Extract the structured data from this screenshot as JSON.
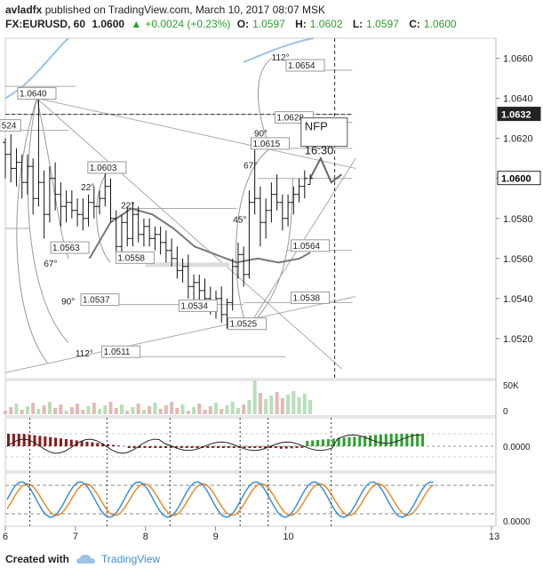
{
  "header": {
    "author": "avladfx",
    "published_text": "published on TradingView.com, March 10, 2017 08:07 MSK",
    "symbol": "FX:EURUSD, 60",
    "last": "1.0600",
    "change": "+0.0024 (+0.23%)",
    "open_label": "O:",
    "open": "1.0597",
    "high_label": "H:",
    "high": "1.0602",
    "low_label": "L:",
    "low": "1.0597",
    "close_label": "C:",
    "close": "1.0600"
  },
  "footer": {
    "created_with": "Created with",
    "brand": "TradingView"
  },
  "colors": {
    "up": "#2ba02b",
    "down": "#8b1a1a",
    "stoch_k": "#3a8fd8",
    "stoch_d": "#f08a24",
    "ma": "#777777",
    "bb": "#9cc3e6"
  },
  "chart_data": {
    "type": "candlestick",
    "y_range": [
      1.05,
      1.067
    ],
    "x_range": [
      6.0,
      13.0
    ],
    "x_ticks": [
      "6",
      "7",
      "8",
      "9",
      "10",
      "13"
    ],
    "y_ticks": [
      "1.0660",
      "1.0640",
      "1.0620",
      "1.0600",
      "1.0580",
      "1.0560",
      "1.0540",
      "1.0520"
    ],
    "price_labels": [
      {
        "text": "1.0632",
        "y": 1.0632
      },
      {
        "text": "1.0600",
        "y": 1.06
      }
    ],
    "annotations": [
      {
        "text": "1.0640",
        "x": 6.45,
        "y": 1.064
      },
      {
        "text": "1.0603",
        "x": 7.45,
        "y": 1.0603
      },
      {
        "text": "1.0558",
        "x": 7.85,
        "y": 1.0558
      },
      {
        "text": "1.0534",
        "x": 8.75,
        "y": 1.0534
      },
      {
        "text": "1.0525",
        "x": 9.45,
        "y": 1.0525
      },
      {
        "text": "1.0615",
        "x": 9.78,
        "y": 1.0615
      },
      {
        "text": "1.0654",
        "x": 10.28,
        "y": 1.0654
      },
      {
        "text": "1.0628",
        "x": 10.12,
        "y": 1.0628
      },
      {
        "text": "1.0564",
        "x": 10.35,
        "y": 1.0564
      },
      {
        "text": "1.0538",
        "x": 10.35,
        "y": 1.0538
      },
      {
        "text": "1.0563",
        "x": 6.92,
        "y": 1.0563
      },
      {
        "text": "1.0537",
        "x": 7.35,
        "y": 1.0537
      },
      {
        "text": "1.0511",
        "x": 7.65,
        "y": 1.0511
      },
      {
        "text": "524",
        "x": 6.07,
        "y": 1.0624
      },
      {
        "text": "67°",
        "x": 6.55,
        "y": 1.0556
      },
      {
        "text": "90°",
        "x": 6.8,
        "y": 1.0537
      },
      {
        "text": "112°",
        "x": 7.0,
        "y": 1.0511
      },
      {
        "text": "22°",
        "x": 7.08,
        "y": 1.0594
      },
      {
        "text": "22°",
        "x": 7.65,
        "y": 1.0585
      },
      {
        "text": "45°",
        "x": 9.25,
        "y": 1.0578
      },
      {
        "text": "67°",
        "x": 9.4,
        "y": 1.0605
      },
      {
        "text": "90°",
        "x": 9.55,
        "y": 1.0621
      },
      {
        "text": "112°",
        "x": 9.8,
        "y": 1.0659
      },
      {
        "text": "NFP",
        "x": 10.55,
        "y": 1.0624
      },
      {
        "text": "16:30",
        "x": 10.55,
        "y": 1.0612
      }
    ],
    "candles": [
      [
        1.0618,
        1.062,
        1.06,
        1.0612
      ],
      [
        1.0612,
        1.0622,
        1.0598,
        1.0605
      ],
      [
        1.0605,
        1.0615,
        1.0596,
        1.0608
      ],
      [
        1.0608,
        1.0612,
        1.059,
        1.0598
      ],
      [
        1.0598,
        1.0612,
        1.0592,
        1.0606
      ],
      [
        1.0606,
        1.061,
        1.0582,
        1.059
      ],
      [
        1.059,
        1.064,
        1.0586,
        1.0598
      ],
      [
        1.0598,
        1.0604,
        1.057,
        1.0582
      ],
      [
        1.0582,
        1.0606,
        1.0578,
        1.06
      ],
      [
        1.06,
        1.0608,
        1.0584,
        1.0592
      ],
      [
        1.0592,
        1.0598,
        1.0576,
        1.0586
      ],
      [
        1.0586,
        1.0594,
        1.0578,
        1.0588
      ],
      [
        1.0588,
        1.0594,
        1.058,
        1.0584
      ],
      [
        1.0584,
        1.059,
        1.0576,
        1.0582
      ],
      [
        1.0582,
        1.059,
        1.0574,
        1.058
      ],
      [
        1.058,
        1.0592,
        1.0576,
        1.0588
      ],
      [
        1.0588,
        1.0596,
        1.058,
        1.0586
      ],
      [
        1.0586,
        1.0594,
        1.0582,
        1.059
      ],
      [
        1.059,
        1.0603,
        1.0586,
        1.0596
      ],
      [
        1.0596,
        1.06,
        1.0578,
        1.058
      ],
      [
        1.058,
        1.0584,
        1.0558,
        1.0566
      ],
      [
        1.0566,
        1.0582,
        1.0562,
        1.0578
      ],
      [
        1.0578,
        1.0586,
        1.0566,
        1.057
      ],
      [
        1.057,
        1.0588,
        1.0566,
        1.0582
      ],
      [
        1.0582,
        1.0586,
        1.0568,
        1.0572
      ],
      [
        1.0572,
        1.058,
        1.0566,
        1.0576
      ],
      [
        1.0576,
        1.058,
        1.0566,
        1.057
      ],
      [
        1.057,
        1.0576,
        1.0564,
        1.0572
      ],
      [
        1.0572,
        1.0576,
        1.0562,
        1.0568
      ],
      [
        1.0568,
        1.0574,
        1.0558,
        1.0564
      ],
      [
        1.0564,
        1.057,
        1.0556,
        1.056
      ],
      [
        1.056,
        1.0566,
        1.055,
        1.0554
      ],
      [
        1.0554,
        1.056,
        1.0548,
        1.0556
      ],
      [
        1.0556,
        1.0562,
        1.054,
        1.0546
      ],
      [
        1.0546,
        1.0552,
        1.0534,
        1.0548
      ],
      [
        1.0548,
        1.0552,
        1.0538,
        1.0544
      ],
      [
        1.0544,
        1.055,
        1.0536,
        1.054
      ],
      [
        1.054,
        1.0546,
        1.0532,
        1.0536
      ],
      [
        1.0536,
        1.0544,
        1.053,
        1.054
      ],
      [
        1.054,
        1.0546,
        1.0528,
        1.0532
      ],
      [
        1.0532,
        1.054,
        1.0525,
        1.0538
      ],
      [
        1.0538,
        1.056,
        1.0534,
        1.0556
      ],
      [
        1.0556,
        1.0568,
        1.055,
        1.0562
      ],
      [
        1.0562,
        1.0566,
        1.0546,
        1.0552
      ],
      [
        1.0552,
        1.0594,
        1.055,
        1.0588
      ],
      [
        1.0588,
        1.0615,
        1.0582,
        1.059
      ],
      [
        1.059,
        1.0596,
        1.0566,
        1.0578
      ],
      [
        1.0578,
        1.059,
        1.057,
        1.0584
      ],
      [
        1.0584,
        1.0598,
        1.0578,
        1.0592
      ],
      [
        1.0592,
        1.0602,
        1.0584,
        1.0588
      ],
      [
        1.0588,
        1.0592,
        1.0574,
        1.058
      ],
      [
        1.058,
        1.0592,
        1.0576,
        1.0588
      ],
      [
        1.0588,
        1.0596,
        1.0582,
        1.0592
      ],
      [
        1.0592,
        1.06,
        1.0588,
        1.0596
      ],
      [
        1.0596,
        1.0604,
        1.059,
        1.06
      ],
      [
        1.0597,
        1.0602,
        1.0597,
        1.06
      ]
    ],
    "volume_label": "50K",
    "volume_zero": "0",
    "macd_label": "0.0000",
    "stoch_label": "0.0000"
  }
}
